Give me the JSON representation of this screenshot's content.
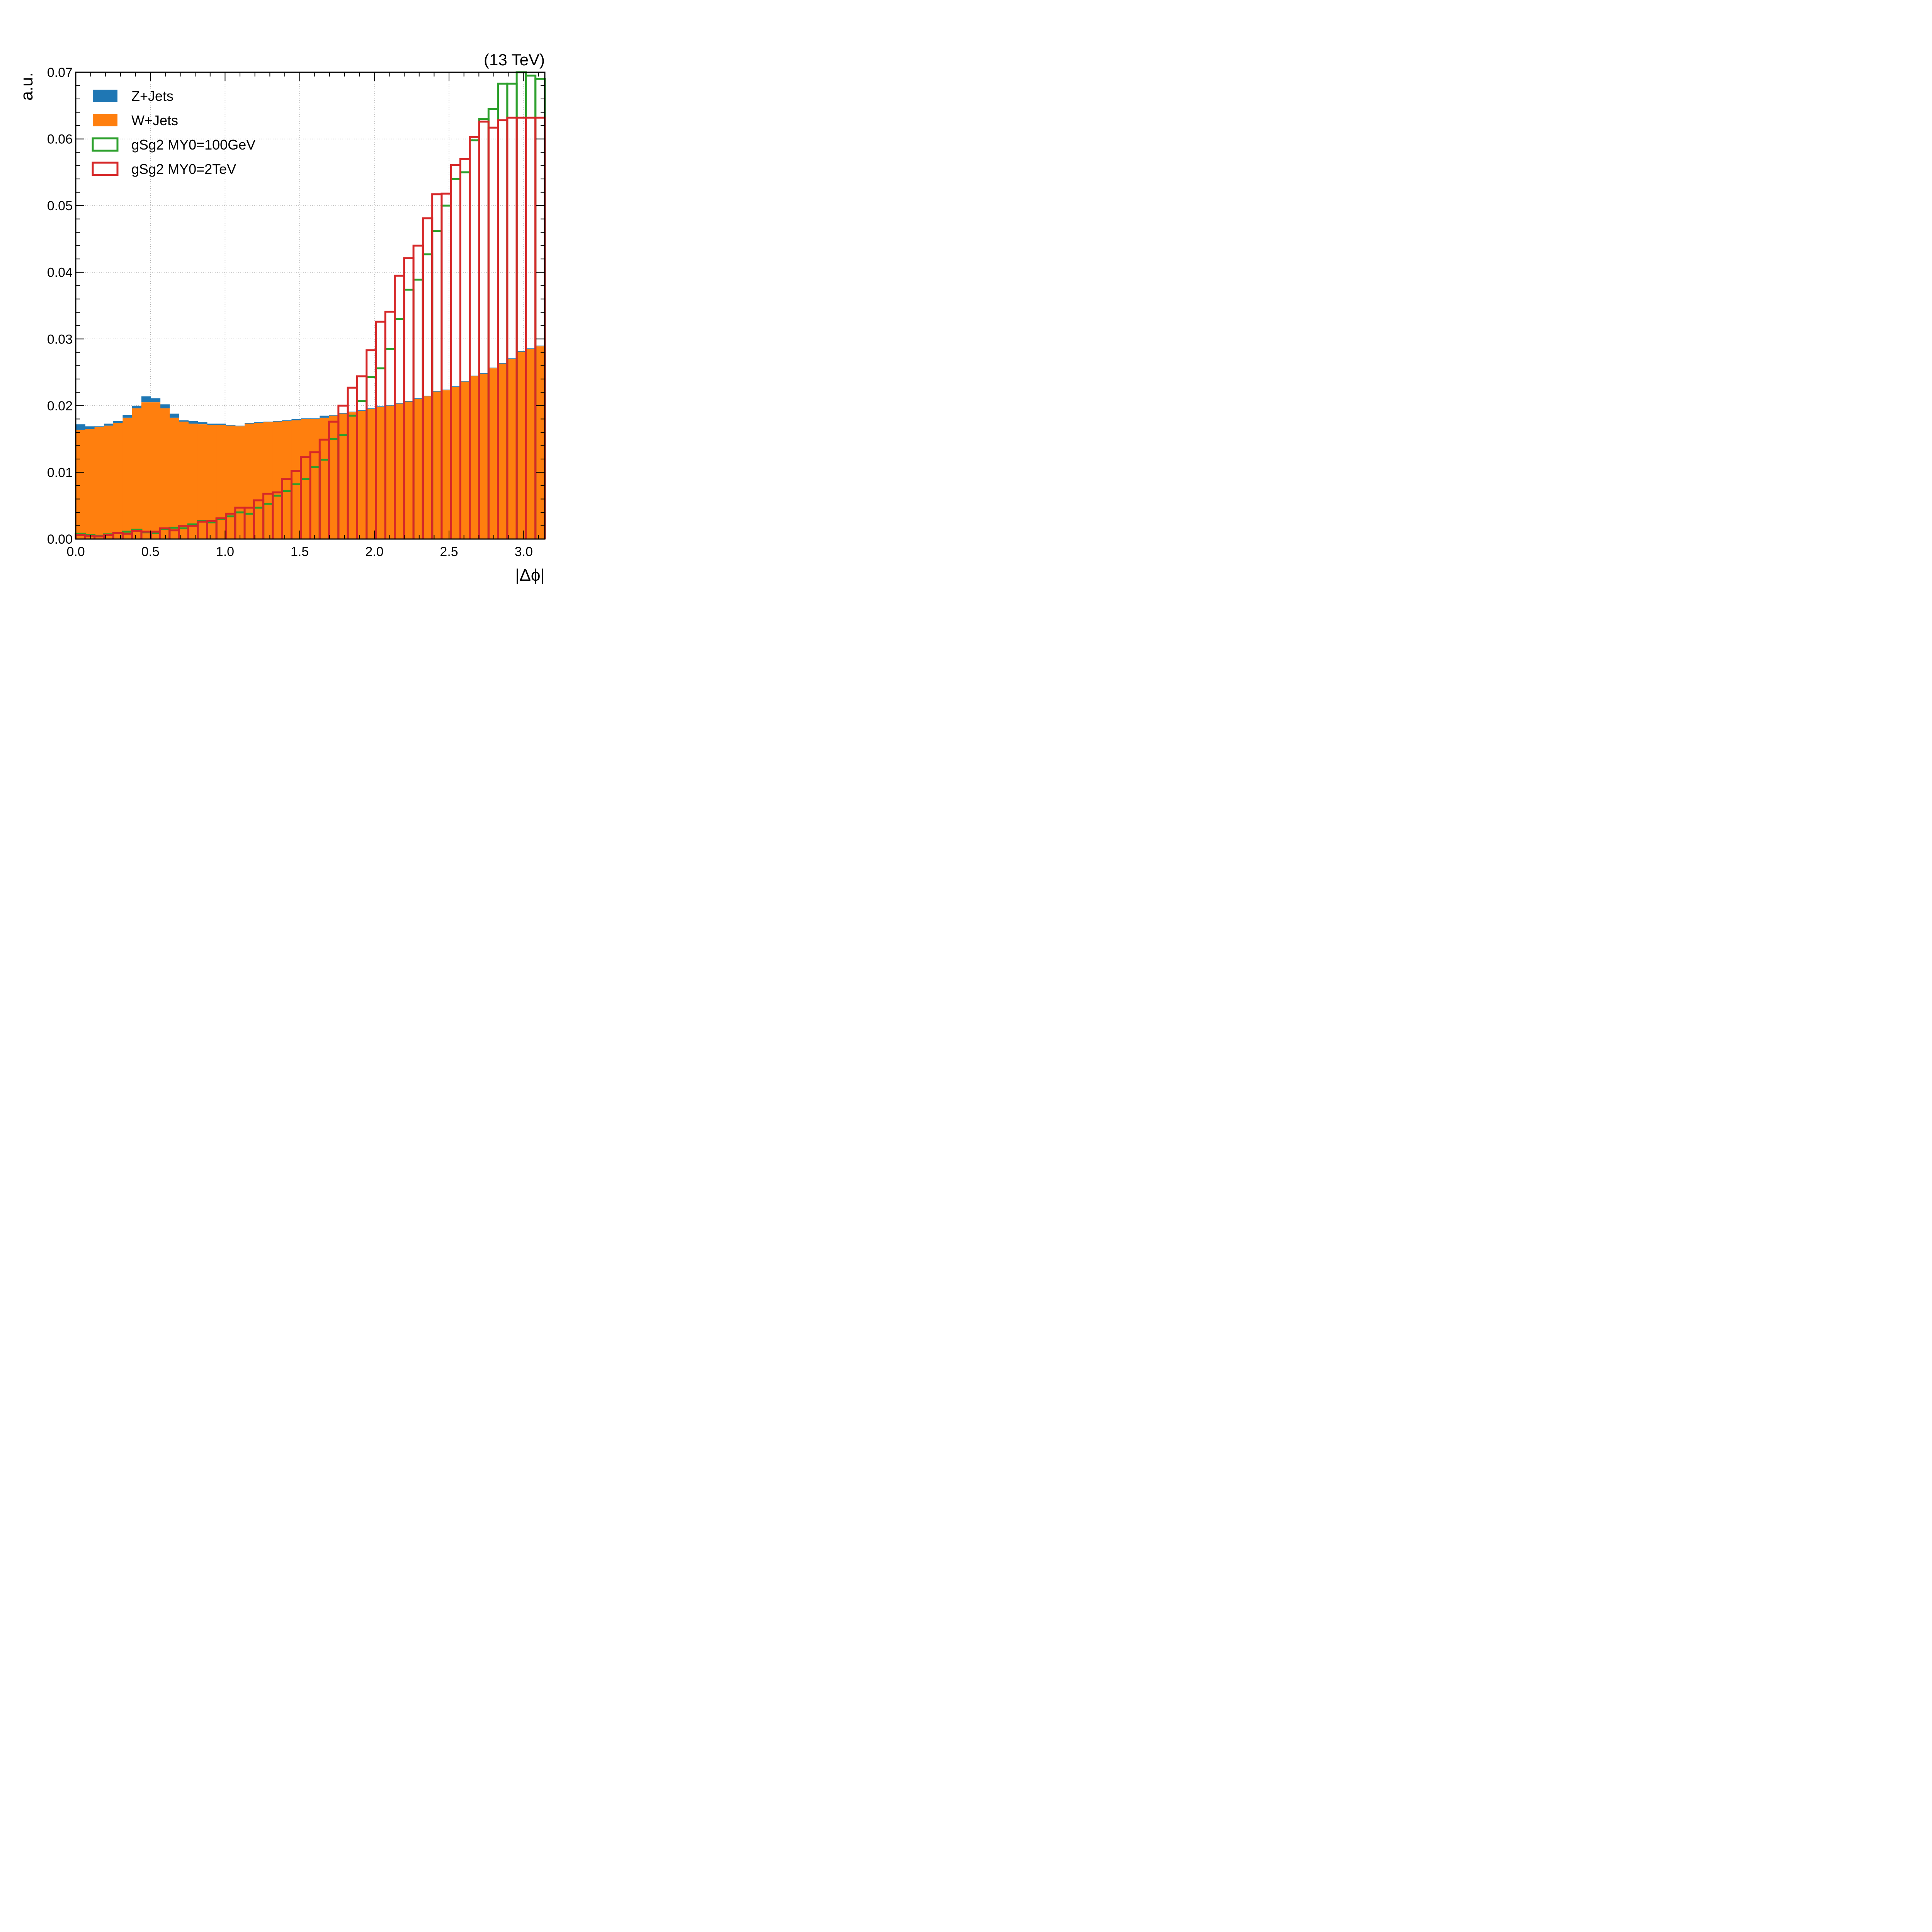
{
  "chart_data": {
    "type": "histogram",
    "energy_label": "(13 TeV)",
    "xlabel": "|Δϕ|",
    "ylabel": "a.u.",
    "xlim": [
      0.0,
      3.1416
    ],
    "ylim": [
      0.0,
      0.07
    ],
    "grid": true,
    "legend_position": "top-left",
    "x_ticks": [
      "0.0",
      "0.5",
      "1.0",
      "1.5",
      "2.0",
      "2.5",
      "3.0"
    ],
    "y_ticks": [
      "0.00",
      "0.01",
      "0.02",
      "0.03",
      "0.04",
      "0.05",
      "0.06",
      "0.07"
    ],
    "x_tick_values": [
      0.0,
      0.5,
      1.0,
      1.5,
      2.0,
      2.5,
      3.0
    ],
    "y_tick_values": [
      0.0,
      0.01,
      0.02,
      0.03,
      0.04,
      0.05,
      0.06,
      0.07
    ],
    "bins": 50,
    "stacked": [
      {
        "name": "Z+Jets",
        "color": "#1f77b4",
        "values": [
          0.0008,
          0.0004,
          0.0001,
          0.0003,
          0.0003,
          0.0004,
          0.0004,
          0.0009,
          0.0006,
          0.0006,
          0.0006,
          0.0002,
          0.0004,
          0.0003,
          0.0002,
          0.0002,
          0.0001,
          0.0001,
          0.0001,
          0.0001,
          0.0001,
          0.0001,
          0.0001,
          0.0002,
          0.0001,
          0.0001,
          0.0003,
          0.0001,
          0.0001,
          0.0001,
          0.0001,
          0.0001,
          0.0001,
          0.0001,
          0.0001,
          0.0001,
          0.0001,
          0.0001,
          0.0001,
          0.0001,
          0.0001,
          0.0001,
          0.0001,
          0.0001,
          0.0001,
          0.0001,
          0.0001,
          0.0001,
          0.0001,
          0.0001
        ]
      },
      {
        "name": "W+Jets",
        "color": "#ff7f0e",
        "values": [
          0.0164,
          0.0165,
          0.0168,
          0.017,
          0.0174,
          0.0182,
          0.0196,
          0.0205,
          0.0205,
          0.0196,
          0.0182,
          0.0176,
          0.0173,
          0.0172,
          0.0171,
          0.0171,
          0.017,
          0.0169,
          0.0173,
          0.0174,
          0.0175,
          0.0176,
          0.0177,
          0.0178,
          0.018,
          0.018,
          0.0182,
          0.0185,
          0.0188,
          0.019,
          0.0192,
          0.0195,
          0.0198,
          0.02,
          0.0203,
          0.0206,
          0.021,
          0.0214,
          0.0221,
          0.0223,
          0.0228,
          0.0236,
          0.0244,
          0.0248,
          0.0256,
          0.0263,
          0.027,
          0.0281,
          0.0285,
          0.0289
        ]
      }
    ],
    "step": [
      {
        "name": "gSg2 MY0=100GeV",
        "color": "#2ca02c",
        "values": [
          0.0008,
          0.0006,
          0.0005,
          0.0007,
          0.0009,
          0.0011,
          0.0014,
          0.001,
          0.0009,
          0.0015,
          0.0017,
          0.0016,
          0.0022,
          0.0027,
          0.0025,
          0.003,
          0.0034,
          0.004,
          0.0038,
          0.0047,
          0.0053,
          0.0065,
          0.0072,
          0.0082,
          0.009,
          0.0108,
          0.0119,
          0.015,
          0.0156,
          0.0185,
          0.0207,
          0.0243,
          0.0256,
          0.0285,
          0.033,
          0.0374,
          0.0389,
          0.0427,
          0.0462,
          0.05,
          0.054,
          0.055,
          0.0598,
          0.063,
          0.0645,
          0.0683,
          0.0683,
          0.0705,
          0.0695,
          0.069
        ]
      },
      {
        "name": "gSg2 MY0=2TeV",
        "color": "#d62728",
        "values": [
          0.0006,
          0.0005,
          0.0004,
          0.0006,
          0.0009,
          0.0008,
          0.0012,
          0.0011,
          0.0011,
          0.0016,
          0.0013,
          0.002,
          0.002,
          0.0026,
          0.0027,
          0.0031,
          0.0038,
          0.0047,
          0.0047,
          0.0058,
          0.0068,
          0.007,
          0.009,
          0.0102,
          0.0123,
          0.013,
          0.0149,
          0.0176,
          0.02,
          0.0227,
          0.0244,
          0.0283,
          0.0326,
          0.0341,
          0.0395,
          0.0421,
          0.044,
          0.0481,
          0.0517,
          0.0518,
          0.0561,
          0.057,
          0.0603,
          0.0626,
          0.0617,
          0.0628,
          0.0632,
          0.0632,
          0.0632,
          0.0632
        ]
      }
    ]
  }
}
